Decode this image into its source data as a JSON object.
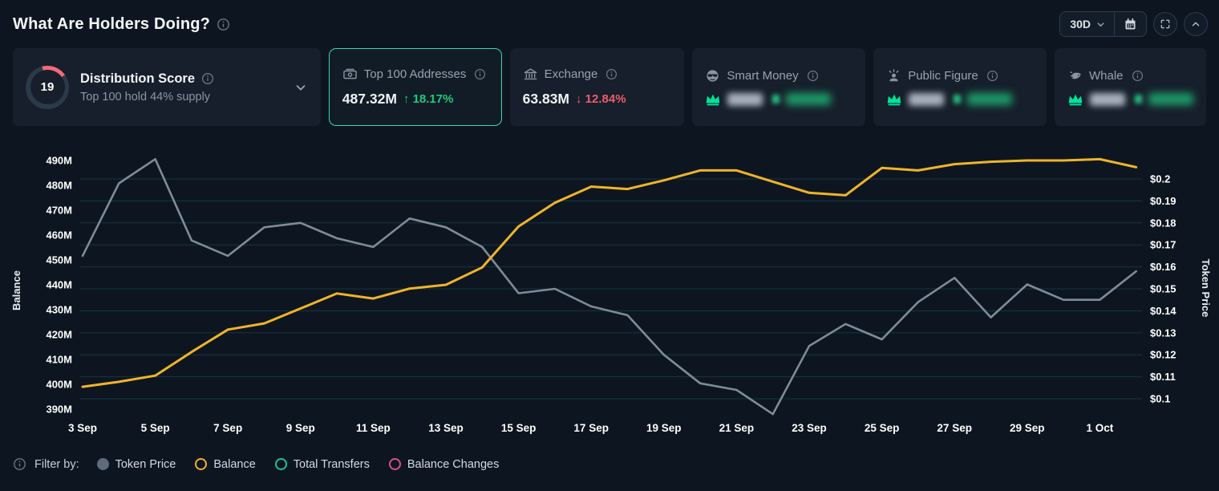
{
  "colors": {
    "background": "#0d1620",
    "card_background": "#161f2b",
    "accent_teal": "#38d7b1",
    "green": "#1ecb7b",
    "red": "#ee5c6c",
    "yellow": "#f0b429",
    "gray_line": "#7f8b98",
    "crown_green": "#00e39a",
    "gauge_arc": "#f4697a"
  },
  "header": {
    "title": "What Are Holders Doing?",
    "time_range": "30D"
  },
  "cards": {
    "distribution": {
      "score": 19,
      "title": "Distribution Score",
      "subtitle": "Top 100 hold 44% supply"
    },
    "top100": {
      "label": "Top 100 Addresses",
      "value": "487.32M",
      "change_icon": "↑",
      "change": "18.17%"
    },
    "exchange": {
      "label": "Exchange",
      "value": "63.83M",
      "change_icon": "↓",
      "change": "12.84%"
    },
    "smart_money": {
      "label": "Smart Money"
    },
    "public_figure": {
      "label": "Public Figure"
    },
    "whale": {
      "label": "Whale"
    }
  },
  "chart_data": {
    "type": "line",
    "x": [
      "3 Sep",
      "4 Sep",
      "5 Sep",
      "6 Sep",
      "7 Sep",
      "8 Sep",
      "9 Sep",
      "10 Sep",
      "11 Sep",
      "12 Sep",
      "13 Sep",
      "14 Sep",
      "15 Sep",
      "16 Sep",
      "17 Sep",
      "18 Sep",
      "19 Sep",
      "20 Sep",
      "21 Sep",
      "22 Sep",
      "23 Sep",
      "24 Sep",
      "25 Sep",
      "26 Sep",
      "27 Sep",
      "28 Sep",
      "29 Sep",
      "30 Sep",
      "1 Oct",
      "2 Oct"
    ],
    "x_axis_ticks_shown": [
      "3 Sep",
      "5 Sep",
      "7 Sep",
      "9 Sep",
      "11 Sep",
      "13 Sep",
      "15 Sep",
      "17 Sep",
      "19 Sep",
      "21 Sep",
      "23 Sep",
      "25 Sep",
      "27 Sep",
      "29 Sep",
      "1 Oct"
    ],
    "series": [
      {
        "name": "Balance",
        "axis": "left",
        "color": "#f0b429",
        "unit": "M",
        "values": [
          399,
          401,
          403.5,
          413,
          422,
          424.5,
          430.5,
          436.5,
          434.5,
          438.5,
          440,
          447,
          463.5,
          473,
          479.5,
          478.5,
          482,
          486,
          486,
          481.5,
          477,
          476,
          487,
          486,
          488.5,
          489.5,
          490,
          490,
          490.5,
          487.3
        ]
      },
      {
        "name": "Token Price",
        "axis": "right",
        "color": "#7f8b98",
        "unit": "$",
        "values": [
          0.165,
          0.198,
          0.209,
          0.172,
          0.165,
          0.178,
          0.18,
          0.173,
          0.169,
          0.182,
          0.178,
          0.169,
          0.148,
          0.15,
          0.142,
          0.138,
          0.12,
          0.107,
          0.104,
          0.093,
          0.124,
          0.134,
          0.127,
          0.144,
          0.155,
          0.137,
          0.152,
          0.145,
          0.145,
          0.158
        ]
      }
    ],
    "left_axis": {
      "label": "Balance",
      "unit": "M",
      "min": 390,
      "max": 490,
      "ticks": [
        "490M",
        "480M",
        "470M",
        "460M",
        "450M",
        "440M",
        "430M",
        "420M",
        "410M",
        "400M",
        "390M"
      ]
    },
    "right_axis": {
      "label": "Token Price",
      "unit": "$",
      "min": 0.1,
      "max": 0.2,
      "ticks": [
        "$0.2",
        "$0.19",
        "$0.18",
        "$0.17",
        "$0.16",
        "$0.15",
        "$0.14",
        "$0.13",
        "$0.12",
        "$0.11",
        "$0.1"
      ]
    },
    "grid": "horizontal",
    "legend_position": "bottom"
  },
  "legend": {
    "filter_label": "Filter by:",
    "items": [
      {
        "label": "Token Price",
        "style": "filled",
        "color": "#5d6b7c"
      },
      {
        "label": "Balance",
        "style": "radio-selected",
        "color": "#f0b429"
      },
      {
        "label": "Total Transfers",
        "style": "ring",
        "color": "#1fbfa0"
      },
      {
        "label": "Balance Changes",
        "style": "ring",
        "color": "#d84f93"
      }
    ]
  }
}
